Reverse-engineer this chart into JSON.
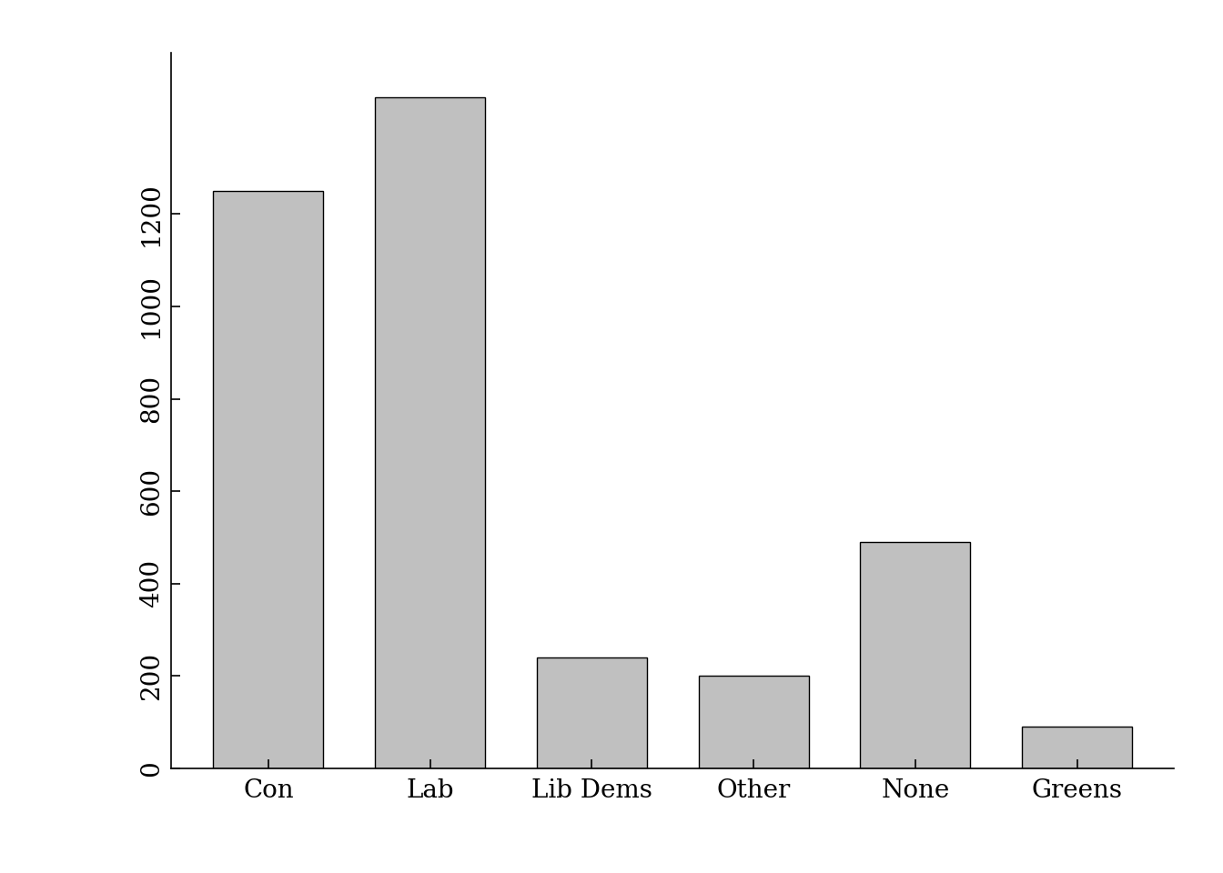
{
  "categories": [
    "Con",
    "Lab",
    "Lib Dems",
    "Other",
    "None",
    "Greens"
  ],
  "values": [
    1249,
    1453,
    240,
    200,
    490,
    90
  ],
  "bar_color": "#c0c0c0",
  "bar_edge_color": "#000000",
  "bar_edge_width": 1.0,
  "background_color": "#ffffff",
  "ylim": [
    0,
    1550
  ],
  "yticks": [
    0,
    200,
    400,
    600,
    800,
    1000,
    1200
  ],
  "ylabel": "",
  "xlabel": "",
  "title": "",
  "tick_fontsize": 20,
  "label_fontsize": 20,
  "bar_width": 0.68
}
